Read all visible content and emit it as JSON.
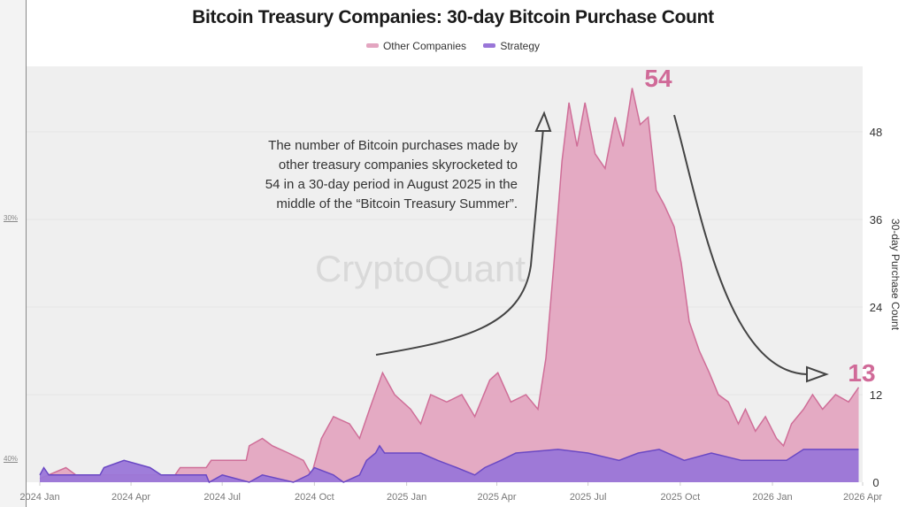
{
  "left_margin_labels": [
    "30%",
    "40%"
  ],
  "chart_data": {
    "type": "area",
    "title": "Bitcoin Treasury Companies: 30-day Bitcoin Purchase Count",
    "ylabel": "30-day Purchase Count",
    "xlabel": "",
    "ylim": [
      0,
      56
    ],
    "xlim": [
      "2024-01-01",
      "2026-04-01"
    ],
    "y_axis_position": "right",
    "yticks": [
      0,
      12,
      24,
      36,
      48
    ],
    "xticks": [
      {
        "date": "2024-01-01",
        "label": "2024 Jan"
      },
      {
        "date": "2024-04-01",
        "label": "2024 Apr"
      },
      {
        "date": "2024-07-01",
        "label": "2024 Jul"
      },
      {
        "date": "2024-10-01",
        "label": "2024 Oct"
      },
      {
        "date": "2025-01-01",
        "label": "2025 Jan"
      },
      {
        "date": "2025-04-01",
        "label": "2025 Apr"
      },
      {
        "date": "2025-07-01",
        "label": "2025 Jul"
      },
      {
        "date": "2025-10-01",
        "label": "2025 Oct"
      },
      {
        "date": "2026-01-01",
        "label": "2026 Jan"
      },
      {
        "date": "2026-04-01",
        "label": "2026 Apr"
      }
    ],
    "grid": true,
    "legend_position": "top",
    "watermark": "CryptoQuant",
    "series": [
      {
        "name": "Other Companies",
        "color": "#e3a5c0",
        "line_color": "#cf6e98",
        "points": [
          [
            "2024-01-01",
            0.5
          ],
          [
            "2024-01-27",
            2
          ],
          [
            "2024-02-06",
            1
          ],
          [
            "2024-05-15",
            1
          ],
          [
            "2024-05-20",
            2
          ],
          [
            "2024-06-15",
            2
          ],
          [
            "2024-06-20",
            3
          ],
          [
            "2024-07-25",
            3
          ],
          [
            "2024-07-28",
            5
          ],
          [
            "2024-08-10",
            6
          ],
          [
            "2024-08-20",
            5
          ],
          [
            "2024-09-05",
            4
          ],
          [
            "2024-09-20",
            3
          ],
          [
            "2024-09-28",
            1
          ],
          [
            "2024-10-08",
            6
          ],
          [
            "2024-10-20",
            9
          ],
          [
            "2024-11-05",
            8
          ],
          [
            "2024-11-15",
            6
          ],
          [
            "2024-11-25",
            10
          ],
          [
            "2024-12-08",
            15
          ],
          [
            "2024-12-20",
            12
          ],
          [
            "2025-01-05",
            10
          ],
          [
            "2025-01-15",
            8
          ],
          [
            "2025-01-25",
            12
          ],
          [
            "2025-02-10",
            11
          ],
          [
            "2025-02-25",
            12
          ],
          [
            "2025-03-10",
            9
          ],
          [
            "2025-03-25",
            14
          ],
          [
            "2025-04-02",
            15
          ],
          [
            "2025-04-15",
            11
          ],
          [
            "2025-04-30",
            12
          ],
          [
            "2025-05-12",
            10
          ],
          [
            "2025-05-20",
            17
          ],
          [
            "2025-05-28",
            30
          ],
          [
            "2025-06-05",
            44
          ],
          [
            "2025-06-12",
            52
          ],
          [
            "2025-06-20",
            46
          ],
          [
            "2025-06-28",
            52
          ],
          [
            "2025-07-08",
            45
          ],
          [
            "2025-07-18",
            43
          ],
          [
            "2025-07-28",
            50
          ],
          [
            "2025-08-05",
            46
          ],
          [
            "2025-08-14",
            54
          ],
          [
            "2025-08-22",
            49
          ],
          [
            "2025-08-30",
            50
          ],
          [
            "2025-09-07",
            40
          ],
          [
            "2025-09-15",
            38
          ],
          [
            "2025-09-25",
            35
          ],
          [
            "2025-10-02",
            30
          ],
          [
            "2025-10-10",
            22
          ],
          [
            "2025-10-20",
            18
          ],
          [
            "2025-10-30",
            15
          ],
          [
            "2025-11-08",
            12
          ],
          [
            "2025-11-18",
            11
          ],
          [
            "2025-11-28",
            8
          ],
          [
            "2025-12-05",
            10
          ],
          [
            "2025-12-15",
            7
          ],
          [
            "2025-12-25",
            9
          ],
          [
            "2026-01-05",
            6
          ],
          [
            "2026-01-12",
            5
          ],
          [
            "2026-01-20",
            8
          ],
          [
            "2026-02-01",
            10
          ],
          [
            "2026-02-10",
            12
          ],
          [
            "2026-02-20",
            10
          ],
          [
            "2026-03-05",
            12
          ],
          [
            "2026-03-18",
            11
          ],
          [
            "2026-03-28",
            13
          ]
        ]
      },
      {
        "name": "Strategy",
        "color": "#9a76d8",
        "line_color": "#6a48c4",
        "points": [
          [
            "2024-01-01",
            1
          ],
          [
            "2024-01-05",
            2
          ],
          [
            "2024-01-10",
            1
          ],
          [
            "2024-03-01",
            1
          ],
          [
            "2024-03-05",
            2
          ],
          [
            "2024-03-25",
            3
          ],
          [
            "2024-04-20",
            2
          ],
          [
            "2024-05-01",
            1
          ],
          [
            "2024-06-15",
            1
          ],
          [
            "2024-06-18",
            0
          ],
          [
            "2024-07-01",
            1
          ],
          [
            "2024-07-28",
            0
          ],
          [
            "2024-08-10",
            1
          ],
          [
            "2024-09-10",
            0
          ],
          [
            "2024-09-25",
            1
          ],
          [
            "2024-10-01",
            2
          ],
          [
            "2024-10-20",
            1
          ],
          [
            "2024-10-30",
            0
          ],
          [
            "2024-11-15",
            1
          ],
          [
            "2024-11-22",
            3
          ],
          [
            "2024-12-01",
            4
          ],
          [
            "2024-12-05",
            5
          ],
          [
            "2024-12-10",
            4
          ],
          [
            "2025-01-15",
            4
          ],
          [
            "2025-02-01",
            3
          ],
          [
            "2025-02-20",
            2
          ],
          [
            "2025-03-10",
            1
          ],
          [
            "2025-03-20",
            2
          ],
          [
            "2025-04-05",
            3
          ],
          [
            "2025-04-20",
            4
          ],
          [
            "2025-06-01",
            4.5
          ],
          [
            "2025-07-01",
            4
          ],
          [
            "2025-08-01",
            3
          ],
          [
            "2025-08-20",
            4
          ],
          [
            "2025-09-10",
            4.5
          ],
          [
            "2025-10-05",
            3
          ],
          [
            "2025-11-01",
            4
          ],
          [
            "2025-12-01",
            3
          ],
          [
            "2026-01-15",
            3
          ],
          [
            "2026-02-01",
            4.5
          ],
          [
            "2026-03-28",
            4.5
          ]
        ]
      }
    ],
    "annotations": {
      "text_lines": [
        "The number of Bitcoin purchases made by",
        "other treasury companies skyrocketed to",
        "54 in a 30-day period in August 2025 in the",
        "middle of the “Bitcoin Treasury Summer”."
      ],
      "peak_label": "54",
      "latest_label": "13",
      "label_color": "#d06a98"
    }
  }
}
